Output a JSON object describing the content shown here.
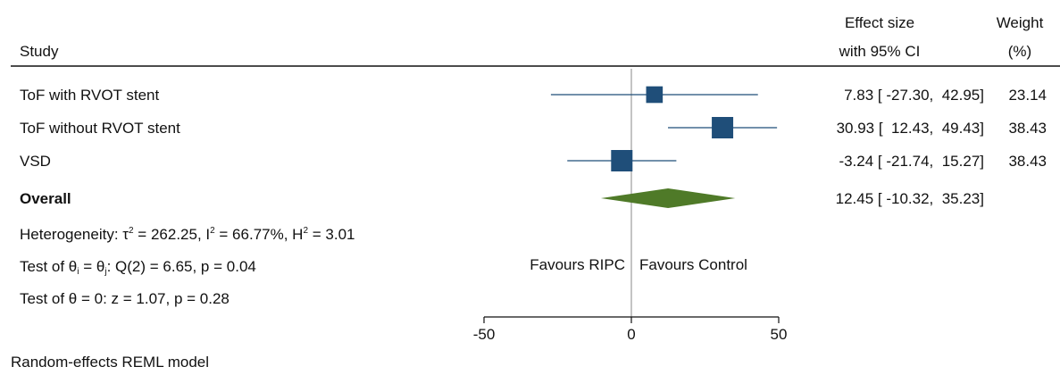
{
  "header": {
    "study_label": "Study",
    "effect_label_line1": "Effect size",
    "effect_label_line2": "with 95% CI",
    "weight_label_line1": "Weight",
    "weight_label_line2": "(%)"
  },
  "colors": {
    "study_marker": "#1f4e79",
    "ci_line": "#1f4e79",
    "overall_diamond": "#4f7a28",
    "text": "#111111"
  },
  "chart_data": {
    "type": "forest",
    "xlim": [
      -50,
      50
    ],
    "x_ticks": [
      -50,
      0,
      50
    ],
    "x_tick_labels": [
      "-50",
      "0",
      "50"
    ],
    "reference_line": 0,
    "studies": [
      {
        "name": "ToF with RVOT stent",
        "effect": 7.83,
        "ci_low": -27.3,
        "ci_high": 42.95,
        "weight": 23.14,
        "effect_text": "7.83 [ -27.30,  42.95]",
        "weight_text": "23.14"
      },
      {
        "name": "ToF without RVOT stent",
        "effect": 30.93,
        "ci_low": 12.43,
        "ci_high": 49.43,
        "weight": 38.43,
        "effect_text": "30.93 [  12.43,  49.43]",
        "weight_text": "38.43"
      },
      {
        "name": "VSD",
        "effect": -3.24,
        "ci_low": -21.74,
        "ci_high": 15.27,
        "weight": 38.43,
        "effect_text": "-3.24 [ -21.74,  15.27]",
        "weight_text": "38.43"
      }
    ],
    "overall": {
      "label": "Overall",
      "effect": 12.45,
      "ci_low": -10.32,
      "ci_high": 35.23,
      "effect_text": "12.45 [ -10.32,  35.23]"
    },
    "heterogeneity": {
      "prefix": "Heterogeneity: τ",
      "tau2_rest": " = 262.25, I",
      "i2_rest": " = 66.77%, H",
      "h2_rest": " = 3.01",
      "sup": "2"
    },
    "test_homogeneity": {
      "prefix": "Test of θ",
      "sub_i": "i",
      "mid": " = θ",
      "sub_j": "j",
      "rest": ": Q(2) = 6.65, p = 0.04"
    },
    "test_overall": "Test of θ = 0: z = 1.07, p = 0.28",
    "favours_left": "Favours RIPC",
    "favours_right": "Favours Control",
    "model_note": "Random-effects REML model"
  }
}
